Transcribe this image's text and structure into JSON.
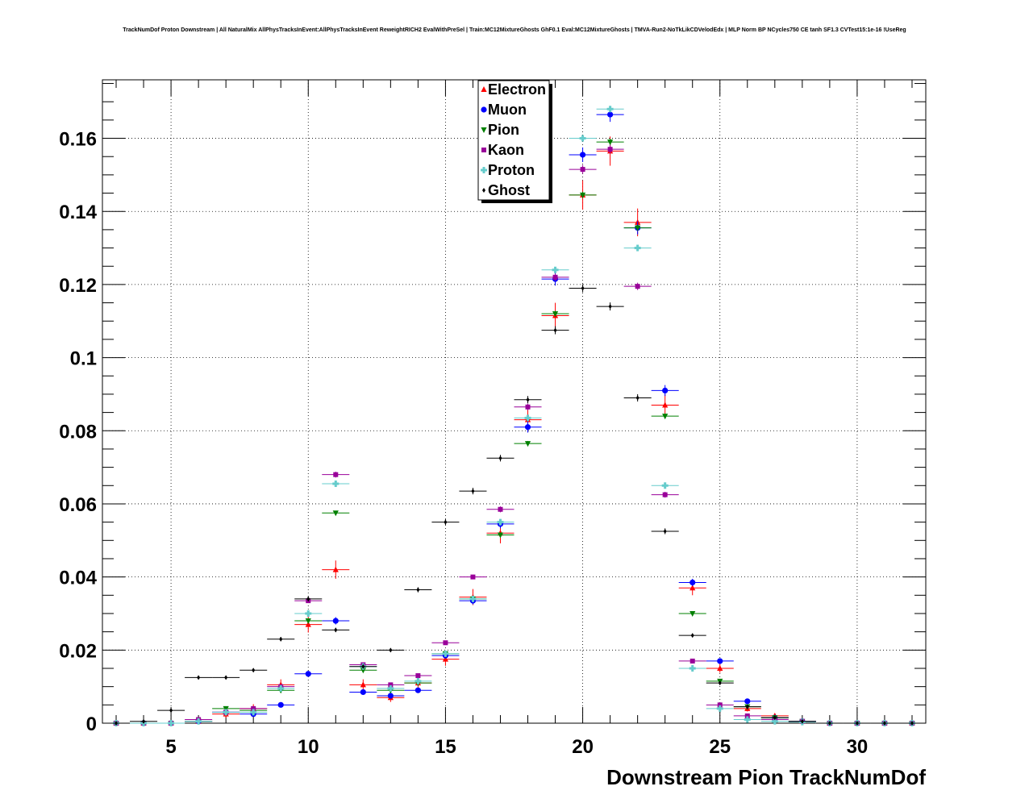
{
  "chart_data": {
    "type": "scatter",
    "title": "TrackNumDof Proton Downstream | All NaturalMix AllPhysTracksInEvent:AllPhysTracksInEvent ReweightRICH2 EvalWithPreSel | Train:MC12MixtureGhosts GhF0.1 Eval:MC12MixtureGhosts | TMVA-Run2-NoTkLikCDVelodEdx | MLP Norm BP NCycles750 CE tanh SF1.3 CVTest15:1e-16 !UseReg",
    "xlabel": "Downstream Pion TrackNumDof",
    "ylabel": "",
    "xlim": [
      2.5,
      32.5
    ],
    "ylim": [
      0,
      0.176
    ],
    "grid": true,
    "legend_position": "top-center",
    "x_ticks": [
      5,
      10,
      15,
      20,
      25,
      30
    ],
    "y_ticks": [
      0,
      0.02,
      0.04,
      0.06,
      0.08,
      0.1,
      0.12,
      0.14,
      0.16
    ],
    "y_tick_labels": [
      "0",
      "0.02",
      "0.04",
      "0.06",
      "0.08",
      "0.1",
      "0.12",
      "0.14",
      "0.16"
    ],
    "series": [
      {
        "name": "Electron",
        "color": "#ff0000",
        "marker": "triangle-up",
        "x": [
          3,
          4,
          5,
          6,
          7,
          8,
          9,
          10,
          11,
          12,
          13,
          14,
          15,
          16,
          17,
          18,
          19,
          20,
          21,
          22,
          23,
          24,
          25,
          26,
          27,
          28,
          29,
          30,
          31,
          32
        ],
        "y": [
          0,
          0,
          0,
          0.0005,
          0.0025,
          0.004,
          0.0105,
          0.027,
          0.042,
          0.0105,
          0.007,
          0.011,
          0.0175,
          0.0345,
          0.052,
          0.083,
          0.1115,
          0.1445,
          0.1565,
          0.137,
          0.087,
          0.037,
          0.015,
          0.004,
          0.002,
          0.0005,
          0,
          0,
          0,
          0
        ],
        "err": [
          0,
          0,
          0,
          0.0005,
          0.001,
          0.0012,
          0.0015,
          0.0022,
          0.0025,
          0.0015,
          0.0012,
          0.0015,
          0.0018,
          0.0022,
          0.0028,
          0.0032,
          0.0035,
          0.004,
          0.004,
          0.0038,
          0.003,
          0.002,
          0.0012,
          0.0008,
          0.0005,
          0.0003,
          0,
          0,
          0,
          0
        ]
      },
      {
        "name": "Muon",
        "color": "#0000ff",
        "marker": "circle",
        "x": [
          3,
          4,
          5,
          6,
          7,
          8,
          9,
          10,
          11,
          12,
          13,
          14,
          15,
          16,
          17,
          18,
          19,
          20,
          21,
          22,
          23,
          24,
          25,
          26,
          27,
          28,
          29,
          30,
          31,
          32
        ],
        "y": [
          0,
          0,
          0,
          0.0005,
          0.003,
          0.0025,
          0.005,
          0.0135,
          0.028,
          0.0085,
          0.0075,
          0.009,
          0.0185,
          0.0335,
          0.0545,
          0.081,
          0.1215,
          0.1555,
          0.1665,
          0.1355,
          0.091,
          0.0385,
          0.017,
          0.006,
          0.0015,
          0.0005,
          0,
          0,
          0,
          0
        ],
        "err": [
          0,
          0,
          0,
          0.0003,
          0.0005,
          0.0005,
          0.0006,
          0.0008,
          0.001,
          0.0006,
          0.0006,
          0.0006,
          0.0008,
          0.001,
          0.0012,
          0.0015,
          0.0018,
          0.002,
          0.002,
          0.0018,
          0.0015,
          0.001,
          0.0007,
          0.0004,
          0.0002,
          0.0001,
          0,
          0,
          0,
          0
        ]
      },
      {
        "name": "Pion",
        "color": "#008000",
        "marker": "triangle-down",
        "x": [
          3,
          4,
          5,
          6,
          7,
          8,
          9,
          10,
          11,
          12,
          13,
          14,
          15,
          16,
          17,
          18,
          19,
          20,
          21,
          22,
          23,
          24,
          25,
          26,
          27,
          28,
          29,
          30,
          31,
          32
        ],
        "y": [
          0,
          0,
          0,
          0.0005,
          0.004,
          0.0035,
          0.009,
          0.028,
          0.0575,
          0.0145,
          0.009,
          0.011,
          0.019,
          0.034,
          0.0515,
          0.0765,
          0.112,
          0.1445,
          0.159,
          0.1355,
          0.084,
          0.03,
          0.0115,
          0.0045,
          0.0015,
          0.0005,
          0,
          0,
          0,
          0
        ],
        "err": [
          0,
          0,
          0,
          0.0002,
          0.0003,
          0.0003,
          0.0004,
          0.0005,
          0.0006,
          0.0004,
          0.0003,
          0.0003,
          0.0004,
          0.0005,
          0.0006,
          0.0007,
          0.0008,
          0.0009,
          0.0009,
          0.0008,
          0.0007,
          0.0005,
          0.0003,
          0.0002,
          0.0001,
          0.0001,
          0,
          0,
          0,
          0
        ]
      },
      {
        "name": "Kaon",
        "color": "#990099",
        "marker": "square",
        "x": [
          3,
          4,
          5,
          6,
          7,
          8,
          9,
          10,
          11,
          12,
          13,
          14,
          15,
          16,
          17,
          18,
          19,
          20,
          21,
          22,
          23,
          24,
          25,
          26,
          27,
          28,
          29,
          30,
          31,
          32
        ],
        "y": [
          0,
          0,
          0,
          0.001,
          0.003,
          0.004,
          0.01,
          0.0335,
          0.068,
          0.016,
          0.0105,
          0.013,
          0.022,
          0.04,
          0.0585,
          0.0865,
          0.122,
          0.1515,
          0.157,
          0.1195,
          0.0625,
          0.017,
          0.005,
          0.002,
          0.001,
          0.0005,
          0,
          0,
          0,
          0
        ],
        "err": [
          0,
          0,
          0,
          0.0002,
          0.0003,
          0.0003,
          0.0004,
          0.0006,
          0.0008,
          0.0004,
          0.0003,
          0.0004,
          0.0005,
          0.0006,
          0.0008,
          0.0009,
          0.001,
          0.0012,
          0.0012,
          0.001,
          0.0008,
          0.0004,
          0.0002,
          0.0001,
          0.0001,
          0.0001,
          0,
          0,
          0,
          0
        ]
      },
      {
        "name": "Proton",
        "color": "#66cccc",
        "marker": "cross",
        "x": [
          3,
          4,
          5,
          6,
          7,
          8,
          9,
          10,
          11,
          12,
          13,
          14,
          15,
          16,
          17,
          18,
          19,
          20,
          21,
          22,
          23,
          24,
          25,
          26,
          27,
          28,
          29,
          30,
          31,
          32
        ],
        "y": [
          0,
          0,
          0,
          0.0005,
          0.003,
          0.003,
          0.0095,
          0.03,
          0.0655,
          0.0155,
          0.0095,
          0.0115,
          0.019,
          0.034,
          0.055,
          0.0835,
          0.124,
          0.16,
          0.168,
          0.13,
          0.065,
          0.015,
          0.004,
          0.001,
          0.0005,
          0.0003,
          0,
          0,
          0,
          0
        ],
        "err": [
          0,
          0,
          0,
          0.0001,
          0.0002,
          0.0002,
          0.0003,
          0.0004,
          0.0005,
          0.0003,
          0.0002,
          0.0002,
          0.0003,
          0.0004,
          0.0005,
          0.0006,
          0.0007,
          0.0008,
          0.0008,
          0.0007,
          0.0005,
          0.0003,
          0.0002,
          0.0001,
          0.0001,
          0.0001,
          0,
          0,
          0,
          0
        ]
      },
      {
        "name": "Ghost",
        "color": "#000000",
        "marker": "diamond",
        "x": [
          3,
          4,
          5,
          6,
          7,
          8,
          9,
          10,
          11,
          12,
          13,
          14,
          15,
          16,
          17,
          18,
          19,
          20,
          21,
          22,
          23,
          24,
          25,
          26,
          27,
          28,
          29,
          30,
          31,
          32
        ],
        "y": [
          0,
          0.0005,
          0.0035,
          0.0125,
          0.0125,
          0.0145,
          0.023,
          0.034,
          0.0255,
          0.0155,
          0.02,
          0.0365,
          0.055,
          0.0635,
          0.0725,
          0.0885,
          0.1075,
          0.119,
          0.114,
          0.089,
          0.0525,
          0.024,
          0.011,
          0.0045,
          0.0015,
          0.0005,
          0,
          0,
          0,
          0
        ],
        "err": [
          0,
          0.0002,
          0.0003,
          0.0005,
          0.0005,
          0.0005,
          0.0006,
          0.0007,
          0.0006,
          0.0005,
          0.0005,
          0.0007,
          0.0008,
          0.0009,
          0.0009,
          0.001,
          0.0011,
          0.0011,
          0.0011,
          0.001,
          0.0008,
          0.0005,
          0.0004,
          0.0002,
          0.0001,
          0.0001,
          0,
          0,
          0,
          0
        ]
      }
    ]
  }
}
